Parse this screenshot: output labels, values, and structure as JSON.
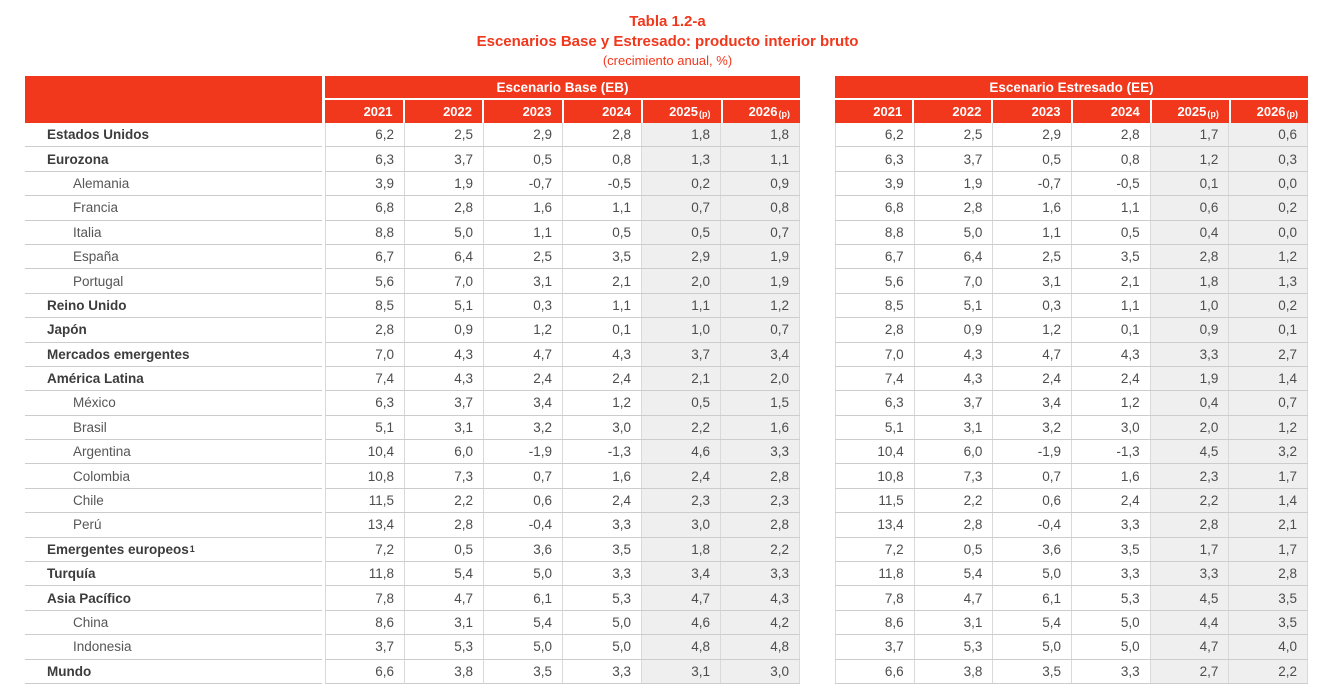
{
  "title": {
    "table_number": "Tabla 1.2-a",
    "heading": "Escenarios Base y Estresado: producto interior bruto",
    "subtitle": "(crecimiento anual, %)"
  },
  "colors": {
    "accent": "#F1371C",
    "header_text": "#FFFFFF",
    "shaded_column": "#EFEFEF",
    "row_line": "#CCCCCC"
  },
  "table": {
    "scenarios": [
      {
        "id": "eb",
        "label": "Escenario Base (EB)"
      },
      {
        "id": "ee",
        "label": "Escenario Estresado (EE)"
      }
    ],
    "years": [
      {
        "label": "2021"
      },
      {
        "label": "2022"
      },
      {
        "label": "2023"
      },
      {
        "label": "2024"
      },
      {
        "label": "2025",
        "suffix": "(p)"
      },
      {
        "label": "2026",
        "suffix": "(p)"
      }
    ],
    "projection_col_start": 4,
    "rows": [
      {
        "label": "Estados Unidos",
        "bold": true,
        "eb": [
          "6,2",
          "2,5",
          "2,9",
          "2,8",
          "1,8",
          "1,8"
        ],
        "ee": [
          "6,2",
          "2,5",
          "2,9",
          "2,8",
          "1,7",
          "0,6"
        ]
      },
      {
        "label": "Eurozona",
        "bold": true,
        "eb": [
          "6,3",
          "3,7",
          "0,5",
          "0,8",
          "1,3",
          "1,1"
        ],
        "ee": [
          "6,3",
          "3,7",
          "0,5",
          "0,8",
          "1,2",
          "0,3"
        ]
      },
      {
        "label": "Alemania",
        "bold": false,
        "eb": [
          "3,9",
          "1,9",
          "-0,7",
          "-0,5",
          "0,2",
          "0,9"
        ],
        "ee": [
          "3,9",
          "1,9",
          "-0,7",
          "-0,5",
          "0,1",
          "0,0"
        ]
      },
      {
        "label": "Francia",
        "bold": false,
        "eb": [
          "6,8",
          "2,8",
          "1,6",
          "1,1",
          "0,7",
          "0,8"
        ],
        "ee": [
          "6,8",
          "2,8",
          "1,6",
          "1,1",
          "0,6",
          "0,2"
        ]
      },
      {
        "label": "Italia",
        "bold": false,
        "eb": [
          "8,8",
          "5,0",
          "1,1",
          "0,5",
          "0,5",
          "0,7"
        ],
        "ee": [
          "8,8",
          "5,0",
          "1,1",
          "0,5",
          "0,4",
          "0,0"
        ]
      },
      {
        "label": "España",
        "bold": false,
        "eb": [
          "6,7",
          "6,4",
          "2,5",
          "3,5",
          "2,9",
          "1,9"
        ],
        "ee": [
          "6,7",
          "6,4",
          "2,5",
          "3,5",
          "2,8",
          "1,2"
        ]
      },
      {
        "label": "Portugal",
        "bold": false,
        "eb": [
          "5,6",
          "7,0",
          "3,1",
          "2,1",
          "2,0",
          "1,9"
        ],
        "ee": [
          "5,6",
          "7,0",
          "3,1",
          "2,1",
          "1,8",
          "1,3"
        ]
      },
      {
        "label": "Reino Unido",
        "bold": true,
        "eb": [
          "8,5",
          "5,1",
          "0,3",
          "1,1",
          "1,1",
          "1,2"
        ],
        "ee": [
          "8,5",
          "5,1",
          "0,3",
          "1,1",
          "1,0",
          "0,2"
        ]
      },
      {
        "label": "Japón",
        "bold": true,
        "eb": [
          "2,8",
          "0,9",
          "1,2",
          "0,1",
          "1,0",
          "0,7"
        ],
        "ee": [
          "2,8",
          "0,9",
          "1,2",
          "0,1",
          "0,9",
          "0,1"
        ]
      },
      {
        "label": "Mercados emergentes",
        "bold": true,
        "eb": [
          "7,0",
          "4,3",
          "4,7",
          "4,3",
          "3,7",
          "3,4"
        ],
        "ee": [
          "7,0",
          "4,3",
          "4,7",
          "4,3",
          "3,3",
          "2,7"
        ]
      },
      {
        "label": "América Latina",
        "bold": true,
        "eb": [
          "7,4",
          "4,3",
          "2,4",
          "2,4",
          "2,1",
          "2,0"
        ],
        "ee": [
          "7,4",
          "4,3",
          "2,4",
          "2,4",
          "1,9",
          "1,4"
        ]
      },
      {
        "label": "México",
        "bold": false,
        "eb": [
          "6,3",
          "3,7",
          "3,4",
          "1,2",
          "0,5",
          "1,5"
        ],
        "ee": [
          "6,3",
          "3,7",
          "3,4",
          "1,2",
          "0,4",
          "0,7"
        ]
      },
      {
        "label": "Brasil",
        "bold": false,
        "eb": [
          "5,1",
          "3,1",
          "3,2",
          "3,0",
          "2,2",
          "1,6"
        ],
        "ee": [
          "5,1",
          "3,1",
          "3,2",
          "3,0",
          "2,0",
          "1,2"
        ]
      },
      {
        "label": "Argentina",
        "bold": false,
        "eb": [
          "10,4",
          "6,0",
          "-1,9",
          "-1,3",
          "4,6",
          "3,3"
        ],
        "ee": [
          "10,4",
          "6,0",
          "-1,9",
          "-1,3",
          "4,5",
          "3,2"
        ]
      },
      {
        "label": "Colombia",
        "bold": false,
        "eb": [
          "10,8",
          "7,3",
          "0,7",
          "1,6",
          "2,4",
          "2,8"
        ],
        "ee": [
          "10,8",
          "7,3",
          "0,7",
          "1,6",
          "2,3",
          "1,7"
        ]
      },
      {
        "label": "Chile",
        "bold": false,
        "eb": [
          "11,5",
          "2,2",
          "0,6",
          "2,4",
          "2,3",
          "2,3"
        ],
        "ee": [
          "11,5",
          "2,2",
          "0,6",
          "2,4",
          "2,2",
          "1,4"
        ]
      },
      {
        "label": "Perú",
        "bold": false,
        "eb": [
          "13,4",
          "2,8",
          "-0,4",
          "3,3",
          "3,0",
          "2,8"
        ],
        "ee": [
          "13,4",
          "2,8",
          "-0,4",
          "3,3",
          "2,8",
          "2,1"
        ]
      },
      {
        "label": "Emergentes europeos",
        "sup": "1",
        "bold": true,
        "eb": [
          "7,2",
          "0,5",
          "3,6",
          "3,5",
          "1,8",
          "2,2"
        ],
        "ee": [
          "7,2",
          "0,5",
          "3,6",
          "3,5",
          "1,7",
          "1,7"
        ]
      },
      {
        "label": "Turquía",
        "bold": true,
        "eb": [
          "11,8",
          "5,4",
          "5,0",
          "3,3",
          "3,4",
          "3,3"
        ],
        "ee": [
          "11,8",
          "5,4",
          "5,0",
          "3,3",
          "3,3",
          "2,8"
        ]
      },
      {
        "label": "Asia Pacífico",
        "bold": true,
        "eb": [
          "7,8",
          "4,7",
          "6,1",
          "5,3",
          "4,7",
          "4,3"
        ],
        "ee": [
          "7,8",
          "4,7",
          "6,1",
          "5,3",
          "4,5",
          "3,5"
        ]
      },
      {
        "label": "China",
        "bold": false,
        "eb": [
          "8,6",
          "3,1",
          "5,4",
          "5,0",
          "4,6",
          "4,2"
        ],
        "ee": [
          "8,6",
          "3,1",
          "5,4",
          "5,0",
          "4,4",
          "3,5"
        ]
      },
      {
        "label": "Indonesia",
        "bold": false,
        "eb": [
          "3,7",
          "5,3",
          "5,0",
          "5,0",
          "4,8",
          "4,8"
        ],
        "ee": [
          "3,7",
          "5,3",
          "5,0",
          "5,0",
          "4,7",
          "4,0"
        ]
      },
      {
        "label": "Mundo",
        "bold": true,
        "eb": [
          "6,6",
          "3,8",
          "3,5",
          "3,3",
          "3,1",
          "3,0"
        ],
        "ee": [
          "6,6",
          "3,8",
          "3,5",
          "3,3",
          "2,7",
          "2,2"
        ]
      }
    ]
  }
}
